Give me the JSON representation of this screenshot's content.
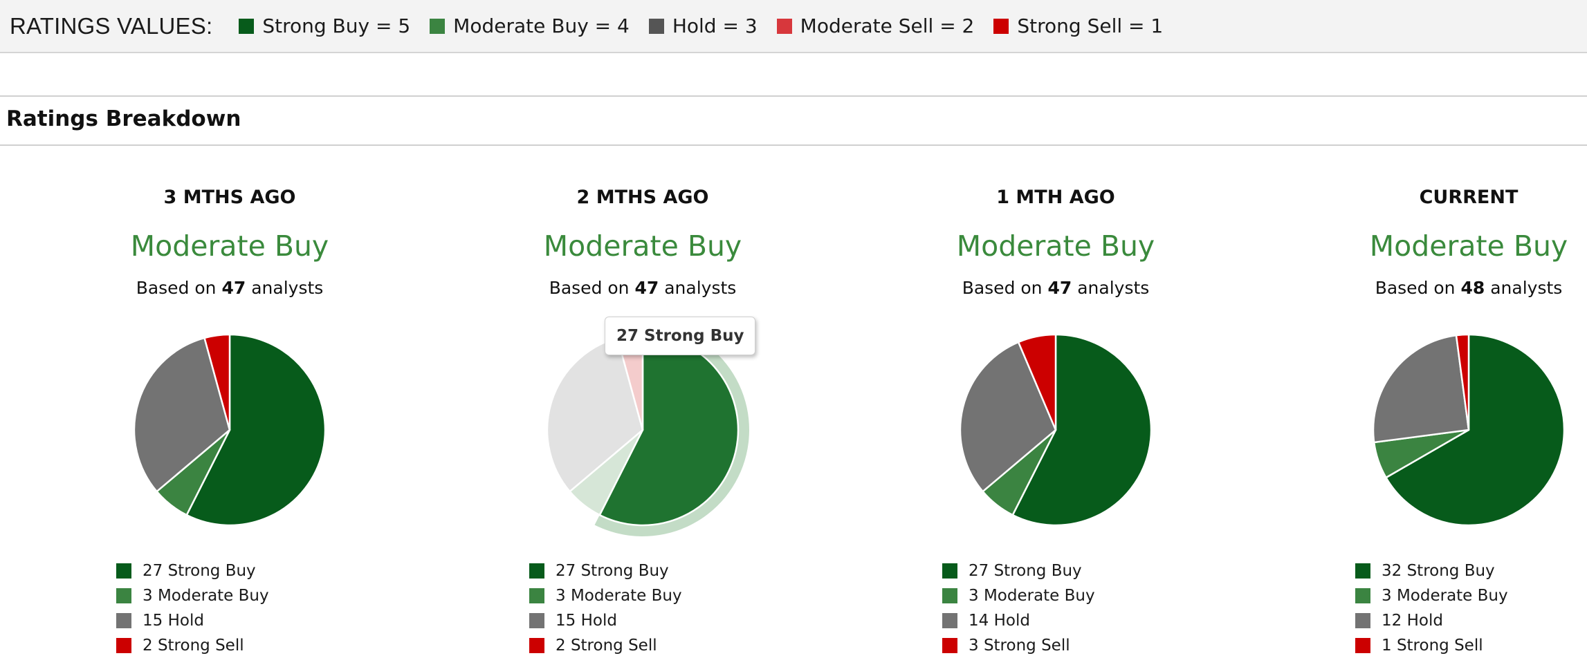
{
  "header": {
    "title": "RATINGS VALUES:",
    "keys": [
      {
        "label": "Strong Buy = 5",
        "color": "#075b1b"
      },
      {
        "label": "Moderate Buy = 4",
        "color": "#3b8441"
      },
      {
        "label": "Hold = 3",
        "color": "#555555"
      },
      {
        "label": "Moderate Sell = 2",
        "color": "#d7373c"
      },
      {
        "label": "Strong Sell = 1",
        "color": "#cc0000"
      }
    ]
  },
  "section_title": "Ratings Breakdown",
  "colors": {
    "strong_buy": "#075b1b",
    "moderate_buy": "#3b8441",
    "hold": "#737373",
    "strong_sell": "#cc0000",
    "consensus": "#3a8a3c"
  },
  "tooltip": {
    "text": "27 Strong Buy",
    "panel": 1
  },
  "chart_data": [
    {
      "type": "pie",
      "title": "3 MTHS AGO",
      "consensus": "Moderate Buy",
      "based_prefix": "Based on",
      "analysts": "47",
      "based_suffix": "analysts",
      "slices": [
        {
          "label": "Strong Buy",
          "value": 27
        },
        {
          "label": "Moderate Buy",
          "value": 3
        },
        {
          "label": "Hold",
          "value": 15
        },
        {
          "label": "Strong Sell",
          "value": 2
        }
      ],
      "legend": [
        "27 Strong Buy",
        "3 Moderate Buy",
        "15 Hold",
        "2 Strong Sell"
      ]
    },
    {
      "type": "pie",
      "title": "2 MTHS AGO",
      "consensus": "Moderate Buy",
      "based_prefix": "Based on",
      "analysts": "47",
      "based_suffix": "analysts",
      "slices": [
        {
          "label": "Strong Buy",
          "value": 27
        },
        {
          "label": "Moderate Buy",
          "value": 3
        },
        {
          "label": "Hold",
          "value": 15
        },
        {
          "label": "Strong Sell",
          "value": 2
        }
      ],
      "legend": [
        "27 Strong Buy",
        "3 Moderate Buy",
        "15 Hold",
        "2 Strong Sell"
      ],
      "highlighted": "Strong Buy"
    },
    {
      "type": "pie",
      "title": "1 MTH AGO",
      "consensus": "Moderate Buy",
      "based_prefix": "Based on",
      "analysts": "47",
      "based_suffix": "analysts",
      "slices": [
        {
          "label": "Strong Buy",
          "value": 27
        },
        {
          "label": "Moderate Buy",
          "value": 3
        },
        {
          "label": "Hold",
          "value": 14
        },
        {
          "label": "Strong Sell",
          "value": 3
        }
      ],
      "legend": [
        "27 Strong Buy",
        "3 Moderate Buy",
        "14 Hold",
        "3 Strong Sell"
      ]
    },
    {
      "type": "pie",
      "title": "CURRENT",
      "consensus": "Moderate Buy",
      "based_prefix": "Based on",
      "analysts": "48",
      "based_suffix": "analysts",
      "slices": [
        {
          "label": "Strong Buy",
          "value": 32
        },
        {
          "label": "Moderate Buy",
          "value": 3
        },
        {
          "label": "Hold",
          "value": 12
        },
        {
          "label": "Strong Sell",
          "value": 1
        }
      ],
      "legend": [
        "32 Strong Buy",
        "3 Moderate Buy",
        "12 Hold",
        "1 Strong Sell"
      ]
    }
  ]
}
